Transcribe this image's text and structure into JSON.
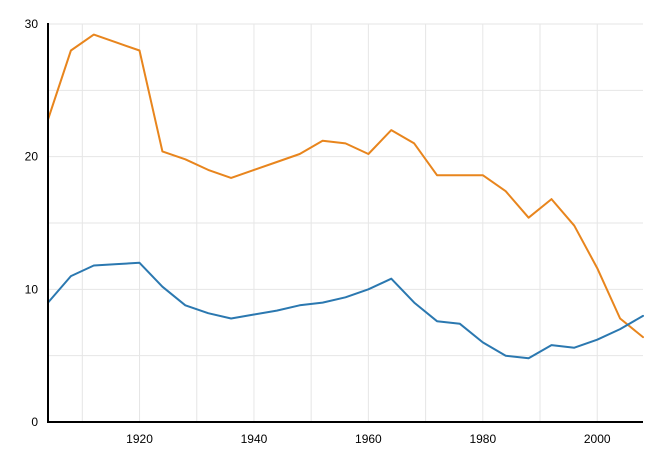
{
  "chart_data": {
    "type": "line",
    "title": "",
    "xlabel": "",
    "ylabel": "",
    "xlim": [
      1904,
      2008
    ],
    "ylim": [
      0,
      30
    ],
    "x_ticks": [
      1920,
      1940,
      1960,
      1980,
      2000
    ],
    "y_ticks": [
      0,
      10,
      20,
      30
    ],
    "x_tick_labels": [
      "1920",
      "1940",
      "1960",
      "1980",
      "2000"
    ],
    "y_tick_labels": [
      "0",
      "10",
      "20",
      "30"
    ],
    "x_minor_grid": [
      1910,
      1930,
      1950,
      1970,
      1990
    ],
    "y_minor_grid": [
      5,
      15,
      25
    ],
    "grid": true,
    "legend": "none",
    "series": [
      {
        "color": "#e8851d",
        "x": [
          1904,
          1908,
          1912,
          1916,
          1920,
          1924,
          1928,
          1932,
          1936,
          1940,
          1944,
          1948,
          1952,
          1956,
          1960,
          1964,
          1968,
          1972,
          1976,
          1980,
          1984,
          1988,
          1992,
          1996,
          2000,
          2004,
          2008
        ],
        "values": [
          22.8,
          28.0,
          29.2,
          28.6,
          28.0,
          20.4,
          19.8,
          19.0,
          18.4,
          19.0,
          19.6,
          20.2,
          21.2,
          21.0,
          20.2,
          22.0,
          21.0,
          18.6,
          18.6,
          18.6,
          17.4,
          15.4,
          16.8,
          14.8,
          11.6,
          7.8,
          6.4
        ]
      },
      {
        "color": "#2b78b0",
        "x": [
          1904,
          1908,
          1912,
          1916,
          1920,
          1924,
          1928,
          1932,
          1936,
          1940,
          1944,
          1948,
          1952,
          1956,
          1960,
          1964,
          1968,
          1972,
          1976,
          1980,
          1984,
          1988,
          1992,
          1996,
          2000,
          2004,
          2008
        ],
        "values": [
          9.0,
          11.0,
          11.8,
          11.9,
          12.0,
          10.2,
          8.8,
          8.2,
          7.8,
          8.1,
          8.4,
          8.8,
          9.0,
          9.4,
          10.0,
          10.8,
          9.0,
          7.6,
          7.4,
          6.0,
          5.0,
          4.8,
          5.8,
          5.6,
          6.2,
          7.0,
          8.0
        ]
      }
    ]
  }
}
